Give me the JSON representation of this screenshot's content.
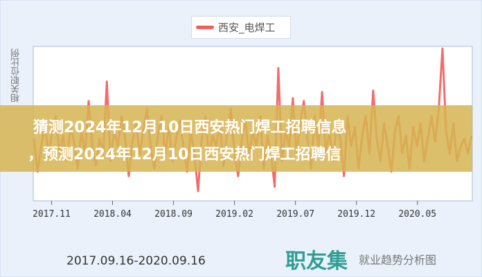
{
  "legend": {
    "label": "西安_电焊工",
    "color": "#f25c5c"
  },
  "banner": {
    "line1": "猜测2024年12月10日西安热门焊工招聘信息",
    "line2": "，预测2024年12月10日西安热门焊工招聘信"
  },
  "footer": {
    "date_range": "2017.09.16-2020.09.16",
    "logo": "职友集",
    "logo_subtitle": "就业趋势分析图"
  },
  "chart_data": {
    "type": "line",
    "title": "",
    "xlabel": "",
    "ylabel": "相关职位比例",
    "x_start": "2017.09.16",
    "x_end": "2020.09.16",
    "x_ticks": [
      "2017.11",
      "2018.04",
      "2018.09",
      "2019.02",
      "2019.07",
      "2019.12",
      "2020.05"
    ],
    "ylim": [
      0,
      100
    ],
    "grid": false,
    "legend_position": "top-center",
    "series": [
      {
        "name": "西安_电焊工",
        "color": "#f25c5c",
        "values": [
          40,
          18,
          35,
          50,
          28,
          45,
          55,
          30,
          42,
          25,
          48,
          38,
          20,
          45,
          30,
          65,
          35,
          22,
          40,
          30,
          78,
          25,
          45,
          35,
          55,
          40,
          15,
          38,
          50,
          30,
          45,
          60,
          35,
          20,
          42,
          55,
          30,
          48,
          25,
          40,
          52,
          35,
          18,
          45,
          30,
          5,
          40,
          55,
          28,
          42,
          35,
          50,
          22,
          45,
          60,
          30,
          15,
          40,
          52,
          28,
          45,
          35,
          55,
          20,
          42,
          30,
          8,
          87,
          25,
          45,
          35,
          67,
          30,
          50,
          65,
          40,
          20,
          55,
          35,
          71,
          30,
          45,
          25,
          50,
          40,
          15,
          55,
          35,
          48,
          20,
          42,
          55,
          30,
          72,
          40,
          25,
          50,
          35,
          18,
          45,
          55,
          30,
          42,
          20,
          48,
          35,
          50,
          25,
          40,
          55,
          38,
          60,
          100,
          45,
          30,
          50,
          25,
          35,
          40,
          30,
          42
        ]
      }
    ]
  }
}
